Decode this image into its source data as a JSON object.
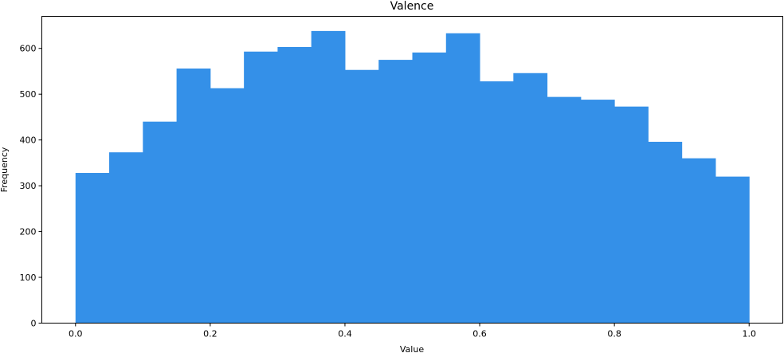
{
  "chart_data": {
    "type": "bar",
    "title": "Valence",
    "xlabel": "Value",
    "ylabel": "Frequency",
    "bin_edges": [
      0.0,
      0.05,
      0.1,
      0.15,
      0.2,
      0.25,
      0.3,
      0.35,
      0.4,
      0.45,
      0.5,
      0.55,
      0.6,
      0.65,
      0.7,
      0.75,
      0.8,
      0.85,
      0.9,
      0.95,
      1.0
    ],
    "values": [
      328,
      373,
      440,
      556,
      513,
      593,
      603,
      638,
      553,
      575,
      591,
      633,
      528,
      546,
      494,
      488,
      473,
      396,
      360,
      320
    ],
    "xlim": [
      -0.05,
      1.05
    ],
    "ylim": [
      0,
      670
    ],
    "xticks": [
      "0.0",
      "0.2",
      "0.4",
      "0.6",
      "0.8",
      "1.0"
    ],
    "yticks": [
      "0",
      "100",
      "200",
      "300",
      "400",
      "500",
      "600"
    ],
    "bar_color": "#3490e8",
    "grid": false,
    "legend": null
  }
}
